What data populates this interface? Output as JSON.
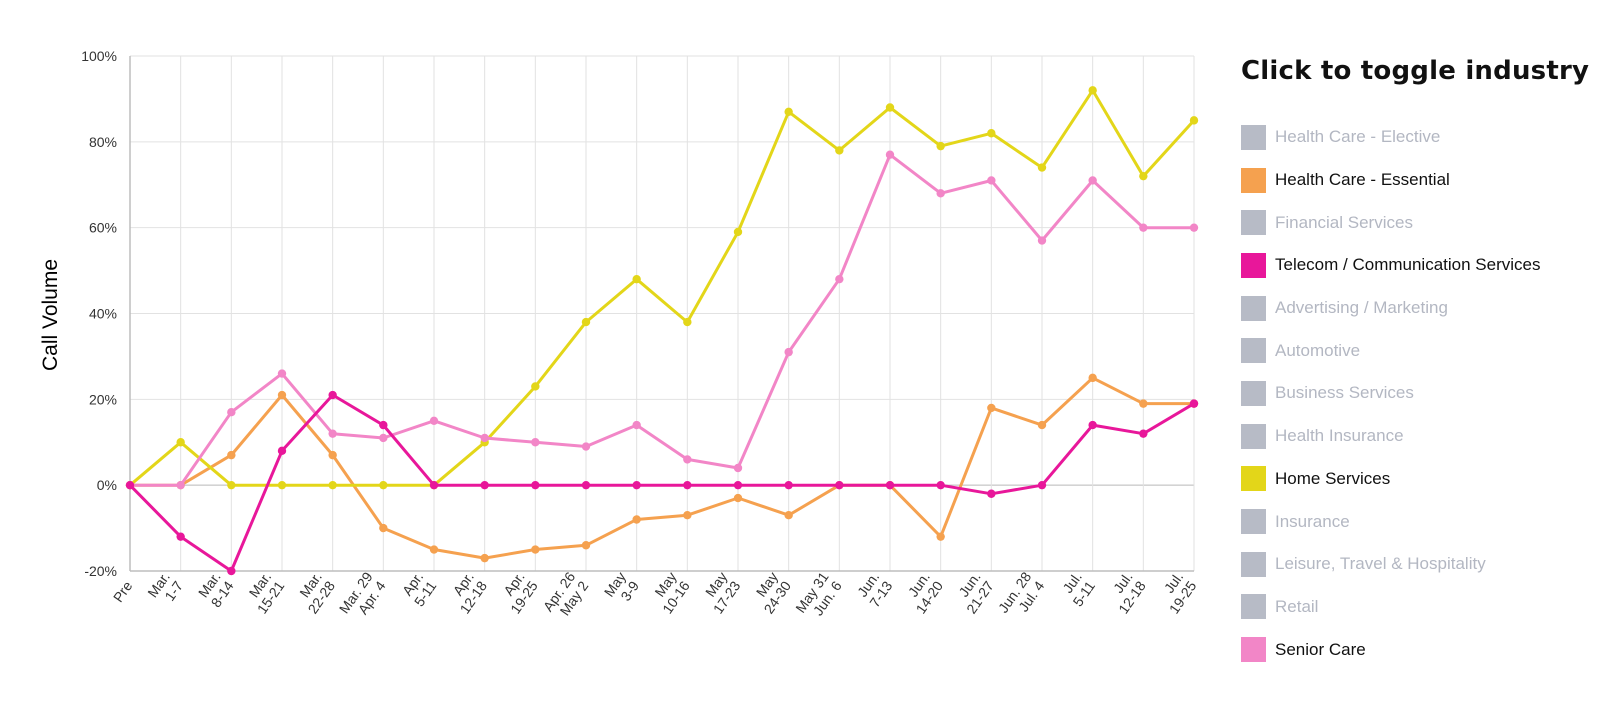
{
  "chart_data": {
    "type": "line",
    "ylabel": "Call Volume",
    "ylim": [
      -20,
      100
    ],
    "ytick_values": [
      -20,
      0,
      20,
      40,
      60,
      80,
      100
    ],
    "ytick_labels": [
      "-20%",
      "0%",
      "20%",
      "40%",
      "60%",
      "80%",
      "100%"
    ],
    "grid": true,
    "categories": [
      [
        "Pre"
      ],
      [
        "Mar.",
        "1-7"
      ],
      [
        "Mar.",
        "8-14"
      ],
      [
        "Mar.",
        "15-21"
      ],
      [
        "Mar.",
        "22-28"
      ],
      [
        "Mar. 29",
        "Apr. 4"
      ],
      [
        "Apr.",
        "5-11"
      ],
      [
        "Apr.",
        "12-18"
      ],
      [
        "Apr.",
        "19-25"
      ],
      [
        "Apr. 26",
        "May 2"
      ],
      [
        "May",
        "3-9"
      ],
      [
        "May",
        "10-16"
      ],
      [
        "May",
        "17-23"
      ],
      [
        "May",
        "24-30"
      ],
      [
        "May 31",
        "Jun. 6"
      ],
      [
        "Jun.",
        "7-13"
      ],
      [
        "Jun.",
        "14-20"
      ],
      [
        "Jun.",
        "21-27"
      ],
      [
        "Jun. 28",
        "Jul. 4"
      ],
      [
        "Jul.",
        "5-11"
      ],
      [
        "Jul.",
        "12-18"
      ],
      [
        "Jul.",
        "19-25"
      ]
    ],
    "series": [
      {
        "name": "Health Care - Essential",
        "color": "#f5a14f",
        "values": [
          0,
          0,
          7,
          21,
          7,
          -10,
          -15,
          -17,
          -15,
          -14,
          -8,
          -7,
          -3,
          -7,
          0,
          0,
          -12,
          18,
          14,
          25,
          19,
          19
        ]
      },
      {
        "name": "Home Services",
        "color": "#e3d619",
        "values": [
          0,
          10,
          0,
          0,
          0,
          0,
          0,
          10,
          23,
          38,
          48,
          38,
          59,
          87,
          78,
          88,
          79,
          82,
          74,
          92,
          72,
          85
        ]
      },
      {
        "name": "Senior Care",
        "color": "#f286c7",
        "values": [
          0,
          0,
          17,
          26,
          12,
          11,
          15,
          11,
          10,
          9,
          14,
          6,
          4,
          31,
          48,
          77,
          68,
          71,
          57,
          71,
          60,
          60
        ]
      },
      {
        "name": "Telecom / Communication Services",
        "color": "#e8179a",
        "values": [
          0,
          -12,
          -20,
          8,
          21,
          14,
          0,
          0,
          0,
          0,
          0,
          0,
          0,
          0,
          0,
          0,
          0,
          -2,
          0,
          14,
          12,
          19
        ]
      }
    ]
  },
  "legend": {
    "title": "Click to toggle industry",
    "active_text_color": "#111111",
    "inactive_text_color": "#b3b7c2",
    "inactive_swatch_color": "#b7bbc6",
    "items": [
      {
        "label": "Health Care - Elective",
        "active": false,
        "color": "#b7bbc6"
      },
      {
        "label": "Health Care - Essential",
        "active": true,
        "color": "#f5a14f"
      },
      {
        "label": "Financial Services",
        "active": false,
        "color": "#b7bbc6"
      },
      {
        "label": "Telecom / Communication Services",
        "active": true,
        "color": "#e8179a"
      },
      {
        "label": "Advertising / Marketing",
        "active": false,
        "color": "#b7bbc6"
      },
      {
        "label": "Automotive",
        "active": false,
        "color": "#b7bbc6"
      },
      {
        "label": "Business Services",
        "active": false,
        "color": "#b7bbc6"
      },
      {
        "label": "Health Insurance",
        "active": false,
        "color": "#b7bbc6"
      },
      {
        "label": "Home Services",
        "active": true,
        "color": "#e3d619"
      },
      {
        "label": "Insurance",
        "active": false,
        "color": "#b7bbc6"
      },
      {
        "label": "Leisure, Travel & Hospitality",
        "active": false,
        "color": "#b7bbc6"
      },
      {
        "label": "Retail",
        "active": false,
        "color": "#b7bbc6"
      },
      {
        "label": "Senior Care",
        "active": true,
        "color": "#f286c7"
      }
    ]
  }
}
